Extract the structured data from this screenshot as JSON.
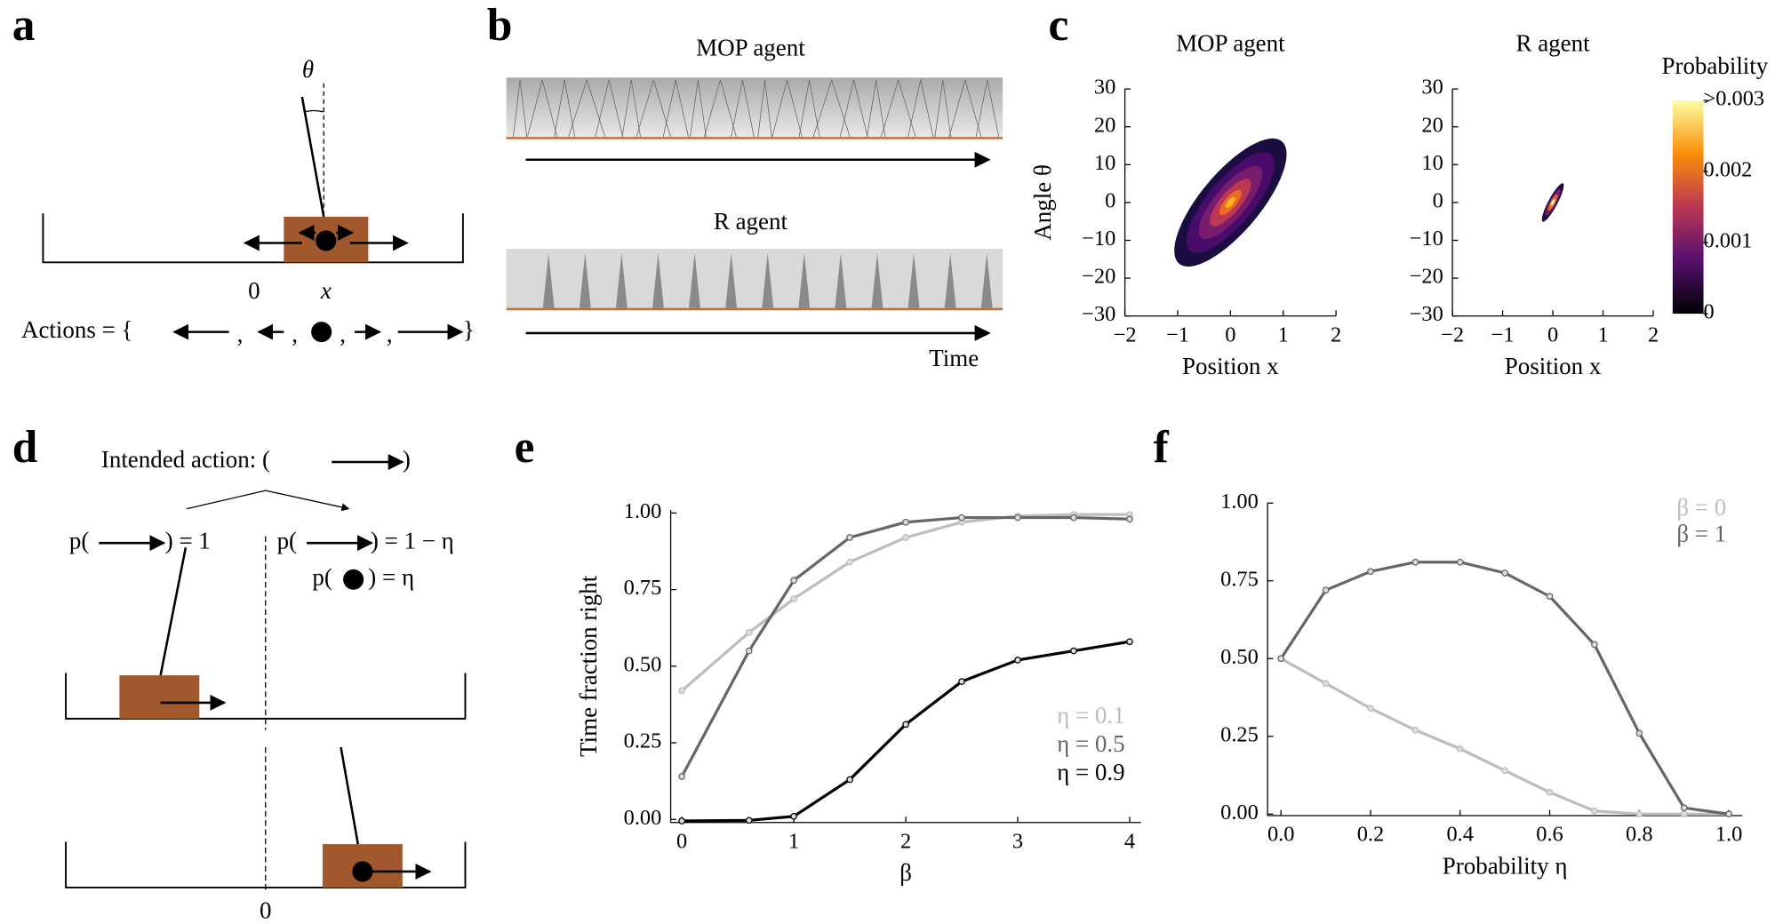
{
  "panel_labels": [
    "a",
    "b",
    "c",
    "d",
    "e",
    "f"
  ],
  "panel_a": {
    "angle": "θ",
    "origin": "0",
    "position": "x",
    "actions_prefix": "Actions = {",
    "separator": ",",
    "actions_suffix": "}"
  },
  "panel_b": {
    "top_title": "MOP agent",
    "bottom_title": "R agent",
    "time_label": "Time"
  },
  "panel_d": {
    "intended": "Intended action: (",
    "intended_close": ")",
    "p_open": "p(",
    "left_eq": ") = 1",
    "right_eq": ") = 1 − η",
    "stay_eq": ") = η",
    "origin": "0"
  },
  "chart_data": [
    {
      "type": "heatmap",
      "title": "MOP agent",
      "x_label": "Position x",
      "y_label": "Angle θ",
      "xlim": [
        -2,
        2
      ],
      "xticks": [
        {
          "value": -2,
          "label": "−2"
        },
        {
          "value": -1,
          "label": "−1"
        },
        0,
        1,
        2
      ],
      "ylim": [
        -30,
        30
      ],
      "yticks": [
        {
          "value": -30,
          "label": "−30"
        },
        {
          "value": -20,
          "label": "−20"
        },
        {
          "value": -10,
          "label": "−10"
        },
        0,
        10,
        20,
        30
      ]
    },
    {
      "type": "heatmap",
      "title": "R agent",
      "x_label": "Position x",
      "xlim": [
        -2,
        2
      ],
      "xticks": [
        {
          "value": -2,
          "label": "−2"
        },
        {
          "value": -1,
          "label": "−1"
        },
        0,
        1,
        2
      ],
      "ylim": [
        -30,
        30
      ],
      "yticks": [
        {
          "value": -30,
          "label": "−30"
        },
        {
          "value": -20,
          "label": "−20"
        },
        {
          "value": -10,
          "label": "−10"
        },
        0,
        10,
        20,
        30
      ],
      "colorbar": {
        "title": "Probability",
        "lim": [
          0,
          0.003
        ],
        "ticks": [
          0,
          0.001,
          0.002,
          {
            "value": 0.003,
            "label": ">0.003"
          }
        ]
      }
    },
    {
      "type": "line",
      "x_label": "β",
      "y_label": "Time fraction right",
      "x": [
        0,
        0.6,
        1,
        1.5,
        2,
        2.5,
        3,
        3.5,
        4
      ],
      "xlim": [
        -0.1,
        4.1
      ],
      "xticks": [
        0,
        1,
        2,
        3,
        4
      ],
      "ylim": [
        -0.01,
        1.01
      ],
      "yticks": [
        {
          "value": 0,
          "label": "0.00"
        },
        {
          "value": 0.25,
          "label": "0.25"
        },
        {
          "value": 0.5,
          "label": "0.50"
        },
        {
          "value": 0.75,
          "label": "0.75"
        },
        {
          "value": 1,
          "label": "1.00"
        }
      ],
      "legend": "lower right",
      "series": [
        {
          "name": "η = 0.1",
          "color": "#bdbdbd",
          "values": [
            0.42,
            0.61,
            0.72,
            0.84,
            0.92,
            0.97,
            0.99,
            0.995,
            0.995
          ]
        },
        {
          "name": "η = 0.5",
          "color": "#666666",
          "values": [
            0.14,
            0.55,
            0.78,
            0.92,
            0.97,
            0.985,
            0.985,
            0.985,
            0.98
          ]
        },
        {
          "name": "η = 0.9",
          "color": "#000000",
          "values": [
            -0.005,
            -0.003,
            0.01,
            0.13,
            0.31,
            0.45,
            0.52,
            0.55,
            0.58
          ]
        }
      ]
    },
    {
      "type": "line",
      "x_label": "Probability η",
      "x": [
        0,
        0.1,
        0.2,
        0.3,
        0.4,
        0.5,
        0.6,
        0.7,
        0.8,
        0.9,
        1.0
      ],
      "xlim": [
        -0.03,
        1.03
      ],
      "xticks": [
        {
          "value": 0,
          "label": "0.0"
        },
        {
          "value": 0.2,
          "label": "0.2"
        },
        {
          "value": 0.4,
          "label": "0.4"
        },
        {
          "value": 0.6,
          "label": "0.6"
        },
        {
          "value": 0.8,
          "label": "0.8"
        },
        {
          "value": 1,
          "label": "1.0"
        }
      ],
      "ylim": [
        -0.005,
        1.0
      ],
      "yticks": [
        {
          "value": 0,
          "label": "0.00"
        },
        {
          "value": 0.25,
          "label": "0.25"
        },
        {
          "value": 0.5,
          "label": "0.50"
        },
        {
          "value": 0.75,
          "label": "0.75"
        },
        {
          "value": 1,
          "label": "1.00"
        }
      ],
      "legend": "upper right",
      "series": [
        {
          "name": "β = 0",
          "color": "#bdbdbd",
          "values": [
            0.5,
            0.42,
            0.34,
            0.27,
            0.21,
            0.14,
            0.07,
            0.01,
            0,
            0,
            0
          ]
        },
        {
          "name": "β = 1",
          "color": "#666666",
          "values": [
            0.5,
            0.72,
            0.78,
            0.81,
            0.81,
            0.775,
            0.7,
            0.545,
            0.26,
            0.02,
            0
          ]
        }
      ]
    }
  ]
}
